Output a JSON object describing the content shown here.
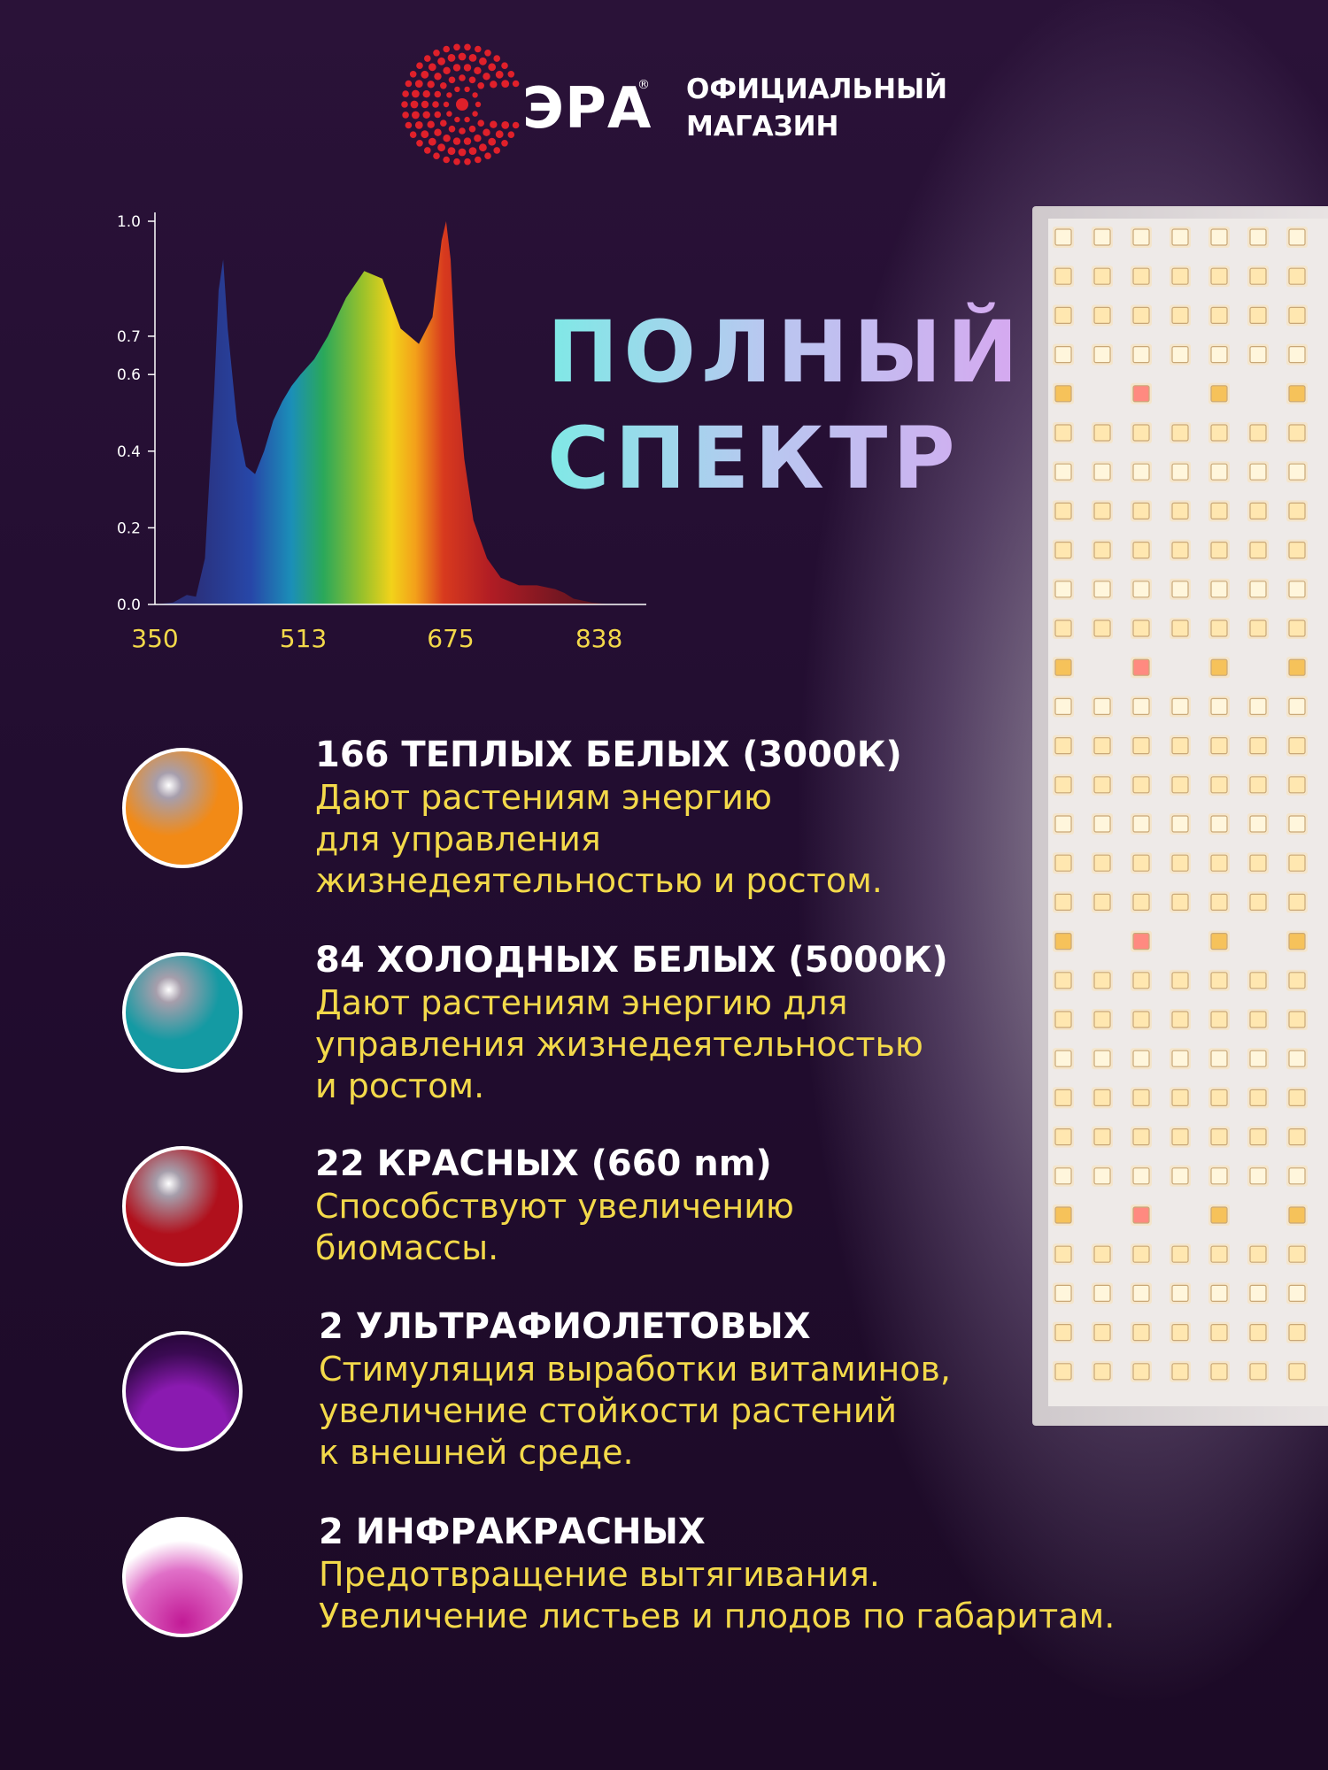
{
  "brand": {
    "logo_text": "ЭРА",
    "registered": "®",
    "shop_line1": "ОФИЦИАЛЬНЫЙ",
    "shop_line2": "МАГАЗИН",
    "logo_color": "#e0202a"
  },
  "headline": {
    "line1": "ПОЛНЫЙ",
    "line2": "СПЕКТР"
  },
  "chart_data": {
    "type": "area",
    "title": "",
    "xlabel": "",
    "ylabel": "",
    "x_ticks": [
      "350",
      "513",
      "675",
      "838"
    ],
    "y_ticks": [
      "0.0",
      "0.2",
      "0.4",
      "0.6",
      "0.7",
      "1.0"
    ],
    "xlim": [
      350,
      890
    ],
    "ylim": [
      0,
      1.0
    ],
    "grid": false,
    "series": [
      {
        "x": [
          350,
          370,
          385,
          395,
          405,
          415,
          420,
          425,
          430,
          440,
          450,
          460,
          470,
          480,
          490,
          500,
          510,
          525,
          540,
          560,
          580,
          600,
          620,
          640,
          655,
          665,
          670,
          675,
          680,
          690,
          700,
          715,
          730,
          750,
          770,
          790,
          800,
          810,
          830,
          850
        ],
        "y": [
          0.0,
          0.005,
          0.025,
          0.02,
          0.12,
          0.55,
          0.82,
          0.9,
          0.72,
          0.48,
          0.36,
          0.34,
          0.4,
          0.48,
          0.53,
          0.57,
          0.6,
          0.64,
          0.7,
          0.8,
          0.87,
          0.85,
          0.72,
          0.68,
          0.75,
          0.95,
          1.0,
          0.9,
          0.65,
          0.38,
          0.22,
          0.12,
          0.07,
          0.05,
          0.05,
          0.04,
          0.03,
          0.015,
          0.005,
          0.0
        ]
      }
    ],
    "axis_color": "#ffffff",
    "x_tick_color": "#f3d94a",
    "y_tick_color": "#ffffff"
  },
  "features": [
    {
      "title": "166 ТЕПЛЫХ БЕЛЫХ (3000К)",
      "desc": "Дают растениям энергию\nдля управления\nжизнедеятельностью и ростом.",
      "color": "#f28a16"
    },
    {
      "title": "84 ХОЛОДНЫХ БЕЛЫХ (5000К)",
      "desc": "Дают растениям энергию для\nуправления жизнедеятельностью\nи ростом.",
      "color": "#149aa3"
    },
    {
      "title": "22 КРАСНЫХ (660 nm)",
      "desc": "Способствуют увеличению\nбиомассы.",
      "color": "#b0101c"
    },
    {
      "title": "2 УЛЬТРАФИОЛЕТОВЫХ",
      "desc": "Стимуляция выработки витаминов,\nувеличение стойкости растений\nк внешней среде.",
      "color": "#8a1ab0"
    },
    {
      "title": "2 ИНФРАКРАСНЫХ",
      "desc": "Предотвращение вытягивания.\nУвеличение листьев и плодов по габаритам.",
      "color": "#c21a96"
    }
  ]
}
